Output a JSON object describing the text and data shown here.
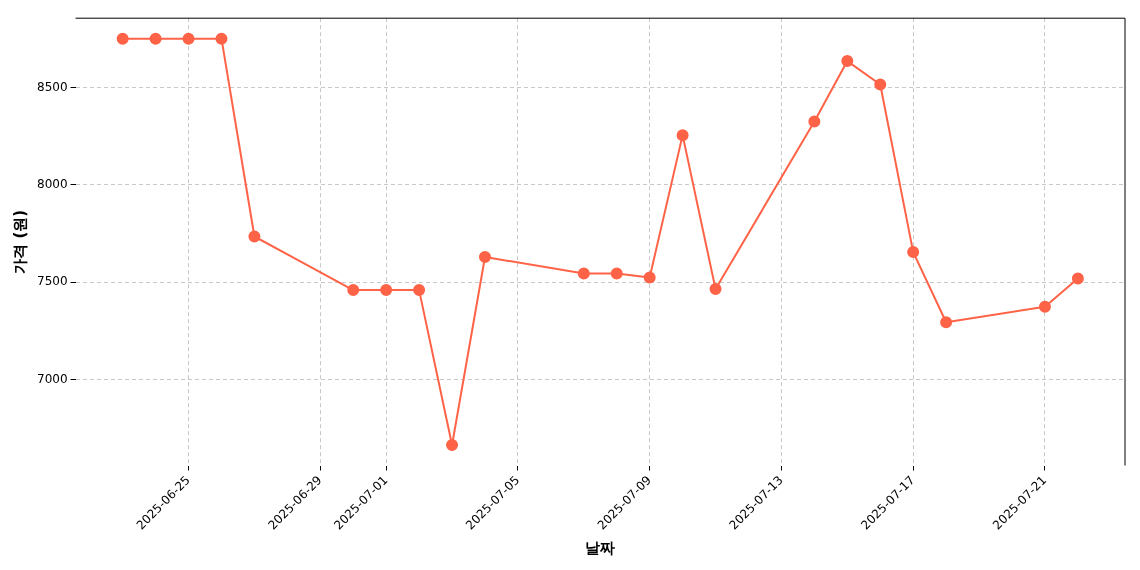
{
  "chart_data": {
    "type": "line",
    "xlabel": "날짜",
    "ylabel": "가격 (원)",
    "x": [
      "2025-06-23",
      "2025-06-24",
      "2025-06-25",
      "2025-06-26",
      "2025-06-27",
      "2025-06-30",
      "2025-07-01",
      "2025-07-02",
      "2025-07-03",
      "2025-07-04",
      "2025-07-07",
      "2025-07-08",
      "2025-07-09",
      "2025-07-10",
      "2025-07-11",
      "2025-07-14",
      "2025-07-15",
      "2025-07-16",
      "2025-07-17",
      "2025-07-18",
      "2025-07-21",
      "2025-07-22"
    ],
    "series": [
      {
        "color": "#ff6347",
        "values": [
          8750,
          8750,
          8750,
          8750,
          7735,
          7460,
          7460,
          7460,
          6665,
          7630,
          7545,
          7545,
          7525,
          8255,
          7465,
          8325,
          8635,
          8515,
          7655,
          7295,
          7375,
          7520
        ]
      }
    ],
    "xlim": [
      "2025-06-21T13:40",
      "2025-07-23T10:20"
    ],
    "xticks": [
      "2025-06-25",
      "2025-06-29",
      "2025-07-01",
      "2025-07-05",
      "2025-07-09",
      "2025-07-13",
      "2025-07-17",
      "2025-07-21"
    ],
    "ylim": [
      6560,
      8855
    ],
    "yticks": [
      7000,
      7500,
      8000,
      8500
    ],
    "grid": true,
    "marker": "circle",
    "line_style": "solid",
    "legend": false
  }
}
